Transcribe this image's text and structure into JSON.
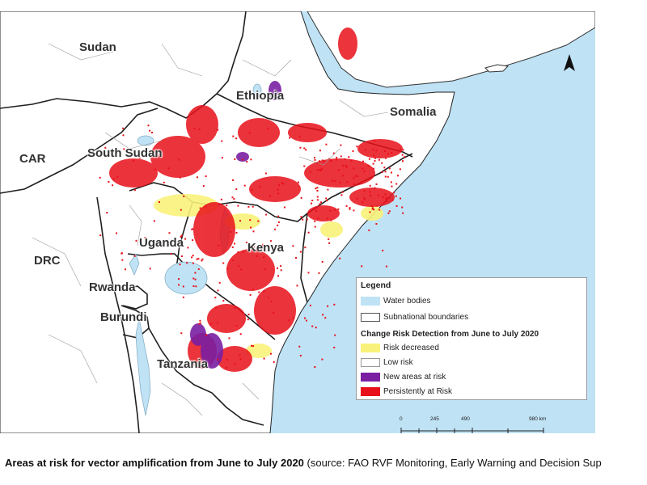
{
  "map": {
    "countries": [
      "Sudan",
      "Ethiopia",
      "Somalia",
      "CAR",
      "South Sudan",
      "Uganda",
      "DRC",
      "Kenya",
      "Rwanda",
      "Burundi",
      "Tanzania"
    ],
    "colors": {
      "water": "#bfe2f5",
      "land": "#ffffff",
      "border": "#1f1f1f",
      "subnational": "#8c8c8c",
      "risk_decreased": "#f9f27a",
      "low_risk": "#ffffff",
      "new_areas": "#7a1fa2",
      "persistent": "#e8101a"
    }
  },
  "legend": {
    "title": "Legend",
    "items_top": [
      {
        "label": "Water bodies",
        "color": "#bfe2f5"
      },
      {
        "label": "Subnational boundaries",
        "color": "#ffffff"
      }
    ],
    "subtitle": "Change Risk Detection from June to July 2020",
    "items": [
      {
        "label": "Risk decreased",
        "color": "#f9f27a"
      },
      {
        "label": "Low risk",
        "color": "#ffffff"
      },
      {
        "label": "New areas at risk",
        "color": "#7a1fa2"
      },
      {
        "label": "Persistently at Risk",
        "color": "#e8101a"
      }
    ]
  },
  "scale": {
    "labels": [
      "0",
      "245",
      "490",
      "980 km"
    ]
  },
  "north_arrow": {
    "label": "",
    "icon": "north-arrow-icon"
  },
  "caption": {
    "bold": "Areas at risk for vector amplification from June to July 2020",
    "normal": " (source: FAO RVF Monitoring, Early Warning and Decision Sup"
  }
}
